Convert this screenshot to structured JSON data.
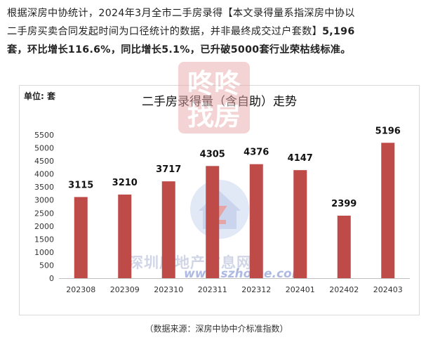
{
  "intro": {
    "line1": "根据深房中协统计，2024年3月全市二手房录得【本文录得量系指深房中协以",
    "line2": "二手房买卖合同发起时间为口径统计的数据，并非最终成交过户套数】",
    "line2_bold": "5,196",
    "line3_bold_start": "套，环比增长116.6%，同比增长5.1%，已升破5000套行业荣枯线标准。"
  },
  "watermark": {
    "logo_text": "咚咚找房",
    "site_text": "深圳房地产信息网",
    "url": "www.szhome.com"
  },
  "source_note": "（数据来源：深房中协中介标准指数）",
  "colors": {
    "bar": "#be4b48",
    "axis": "#bfbfbf",
    "watermark_red": "#e8a6a6"
  },
  "chart_data": {
    "type": "bar",
    "title": "二手房录得量（含自助）走势",
    "unit": "单位: 套",
    "categories": [
      "202308",
      "202309",
      "202310",
      "202311",
      "202312",
      "202401",
      "202402",
      "202403"
    ],
    "values": [
      3115,
      3210,
      3717,
      4305,
      4376,
      4147,
      2399,
      5196
    ],
    "ylim": [
      0,
      5500
    ],
    "yticks": [
      0,
      500,
      1000,
      1500,
      2000,
      2500,
      3000,
      3500,
      4000,
      4500,
      5000,
      5500
    ],
    "grid": false,
    "legend": "none"
  }
}
